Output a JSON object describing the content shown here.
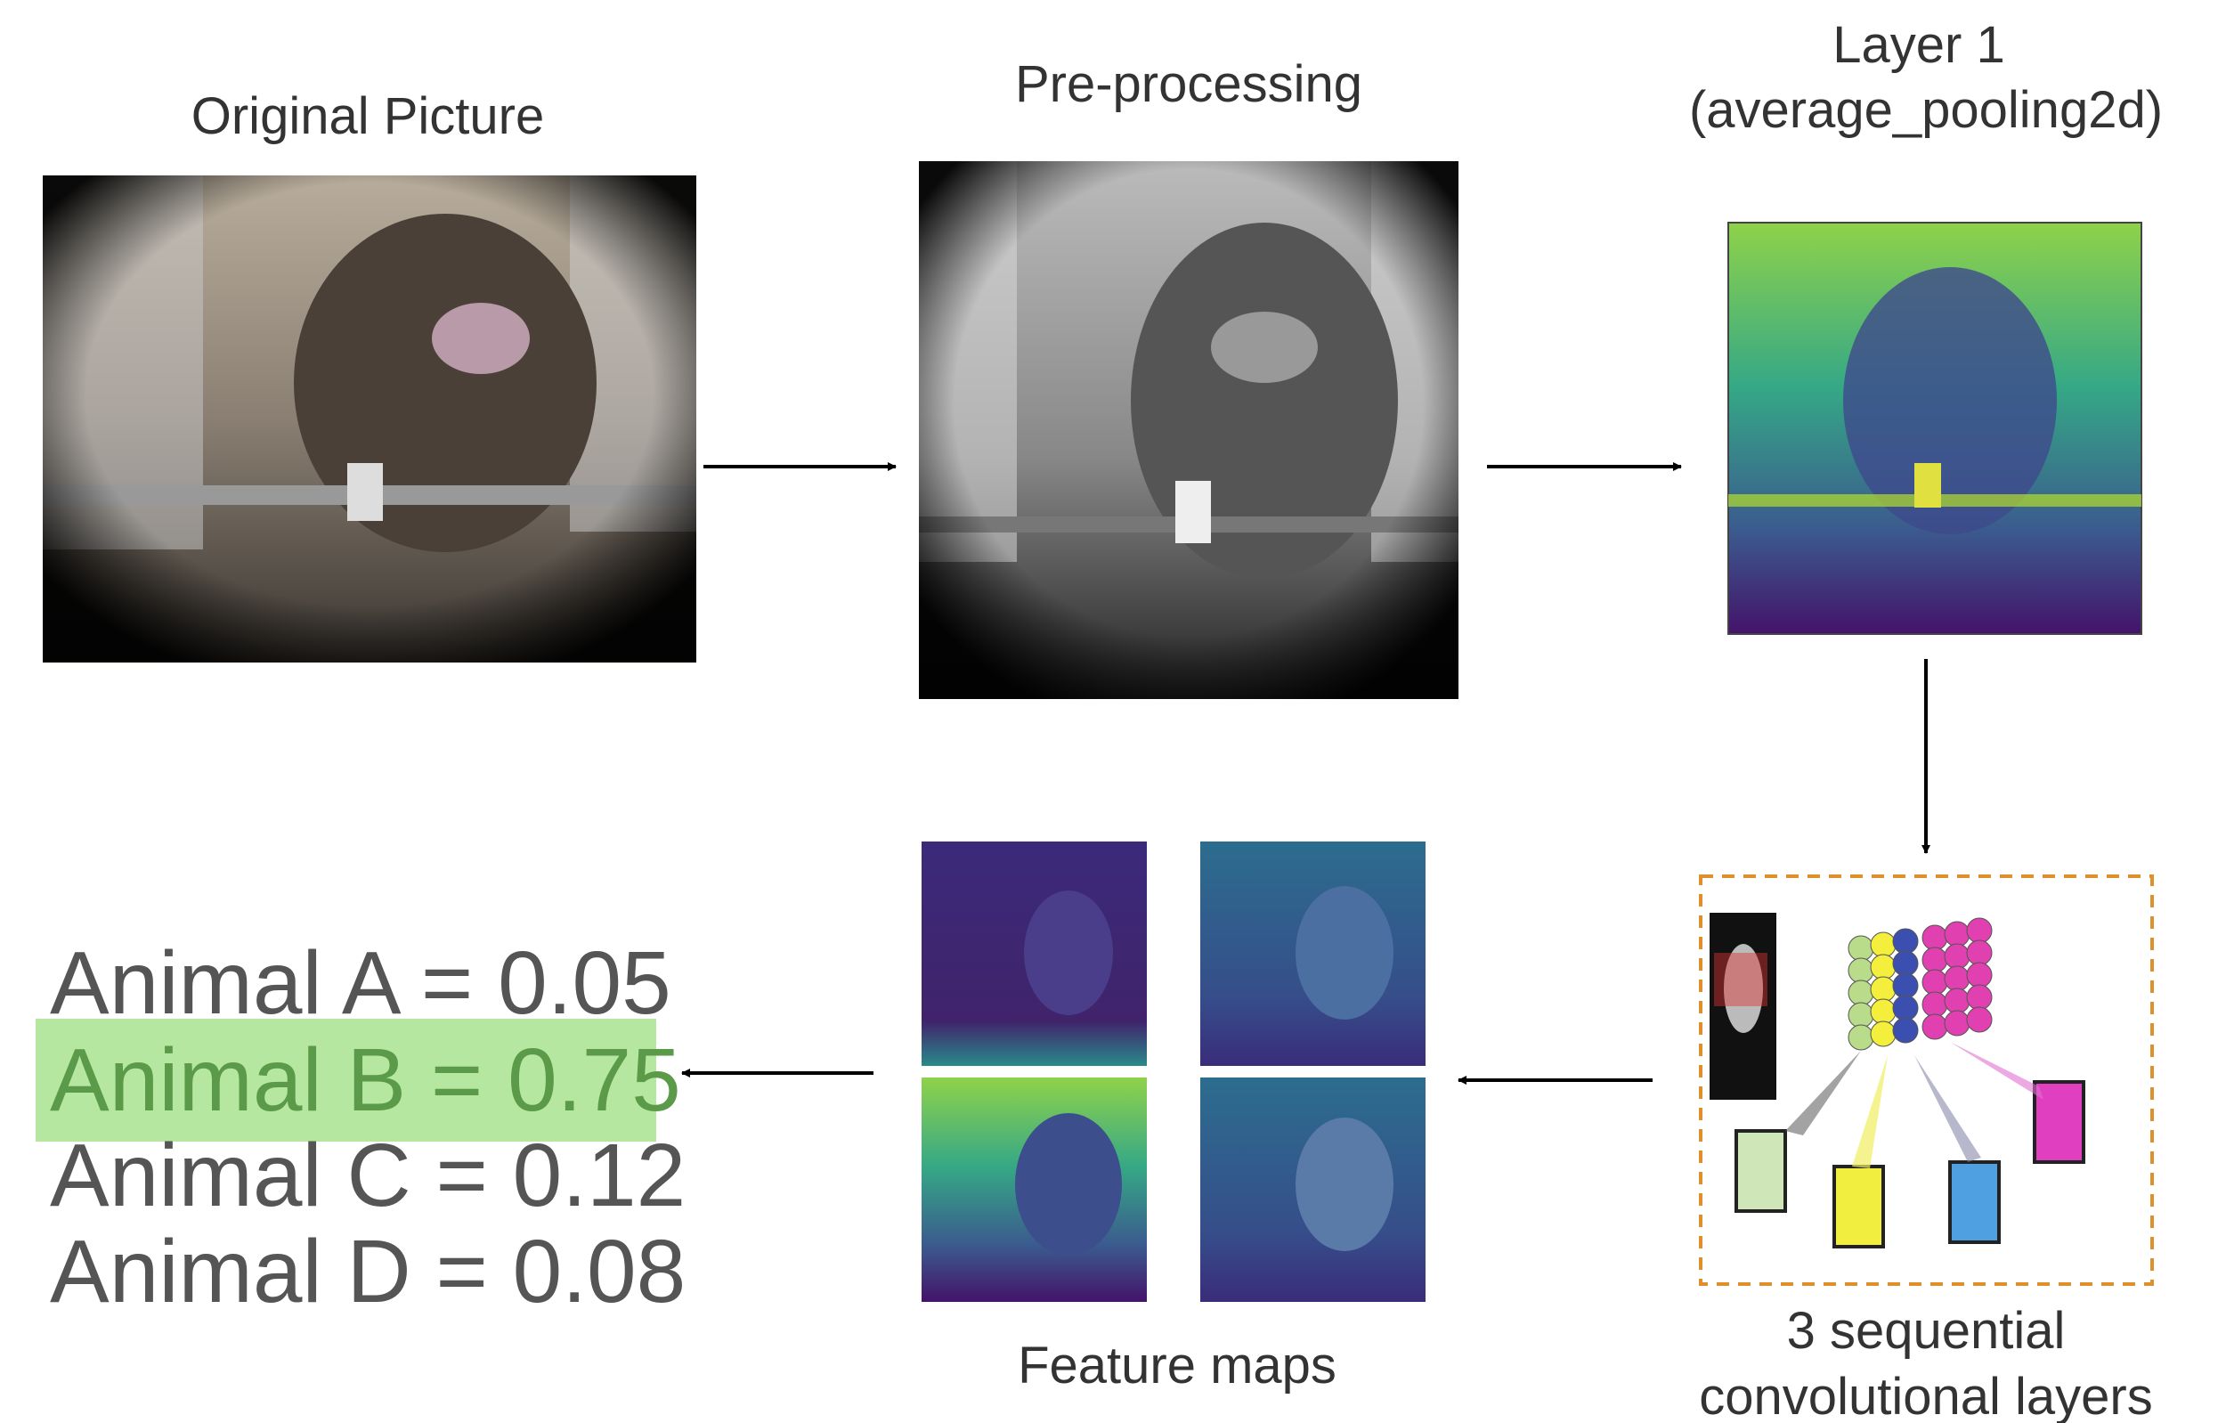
{
  "titles": {
    "original": "Original Picture",
    "preprocessing": "Pre-processing",
    "layer1": [
      "Layer 1",
      "(average_pooling2d)"
    ],
    "conv": [
      "3 sequential",
      "convolutional layers"
    ],
    "feature_maps": "Feature maps"
  },
  "results": [
    "Animal A = 0.05",
    "Animal B = 0.75",
    "Animal C = 0.12",
    "Animal D = 0.08"
  ]
}
